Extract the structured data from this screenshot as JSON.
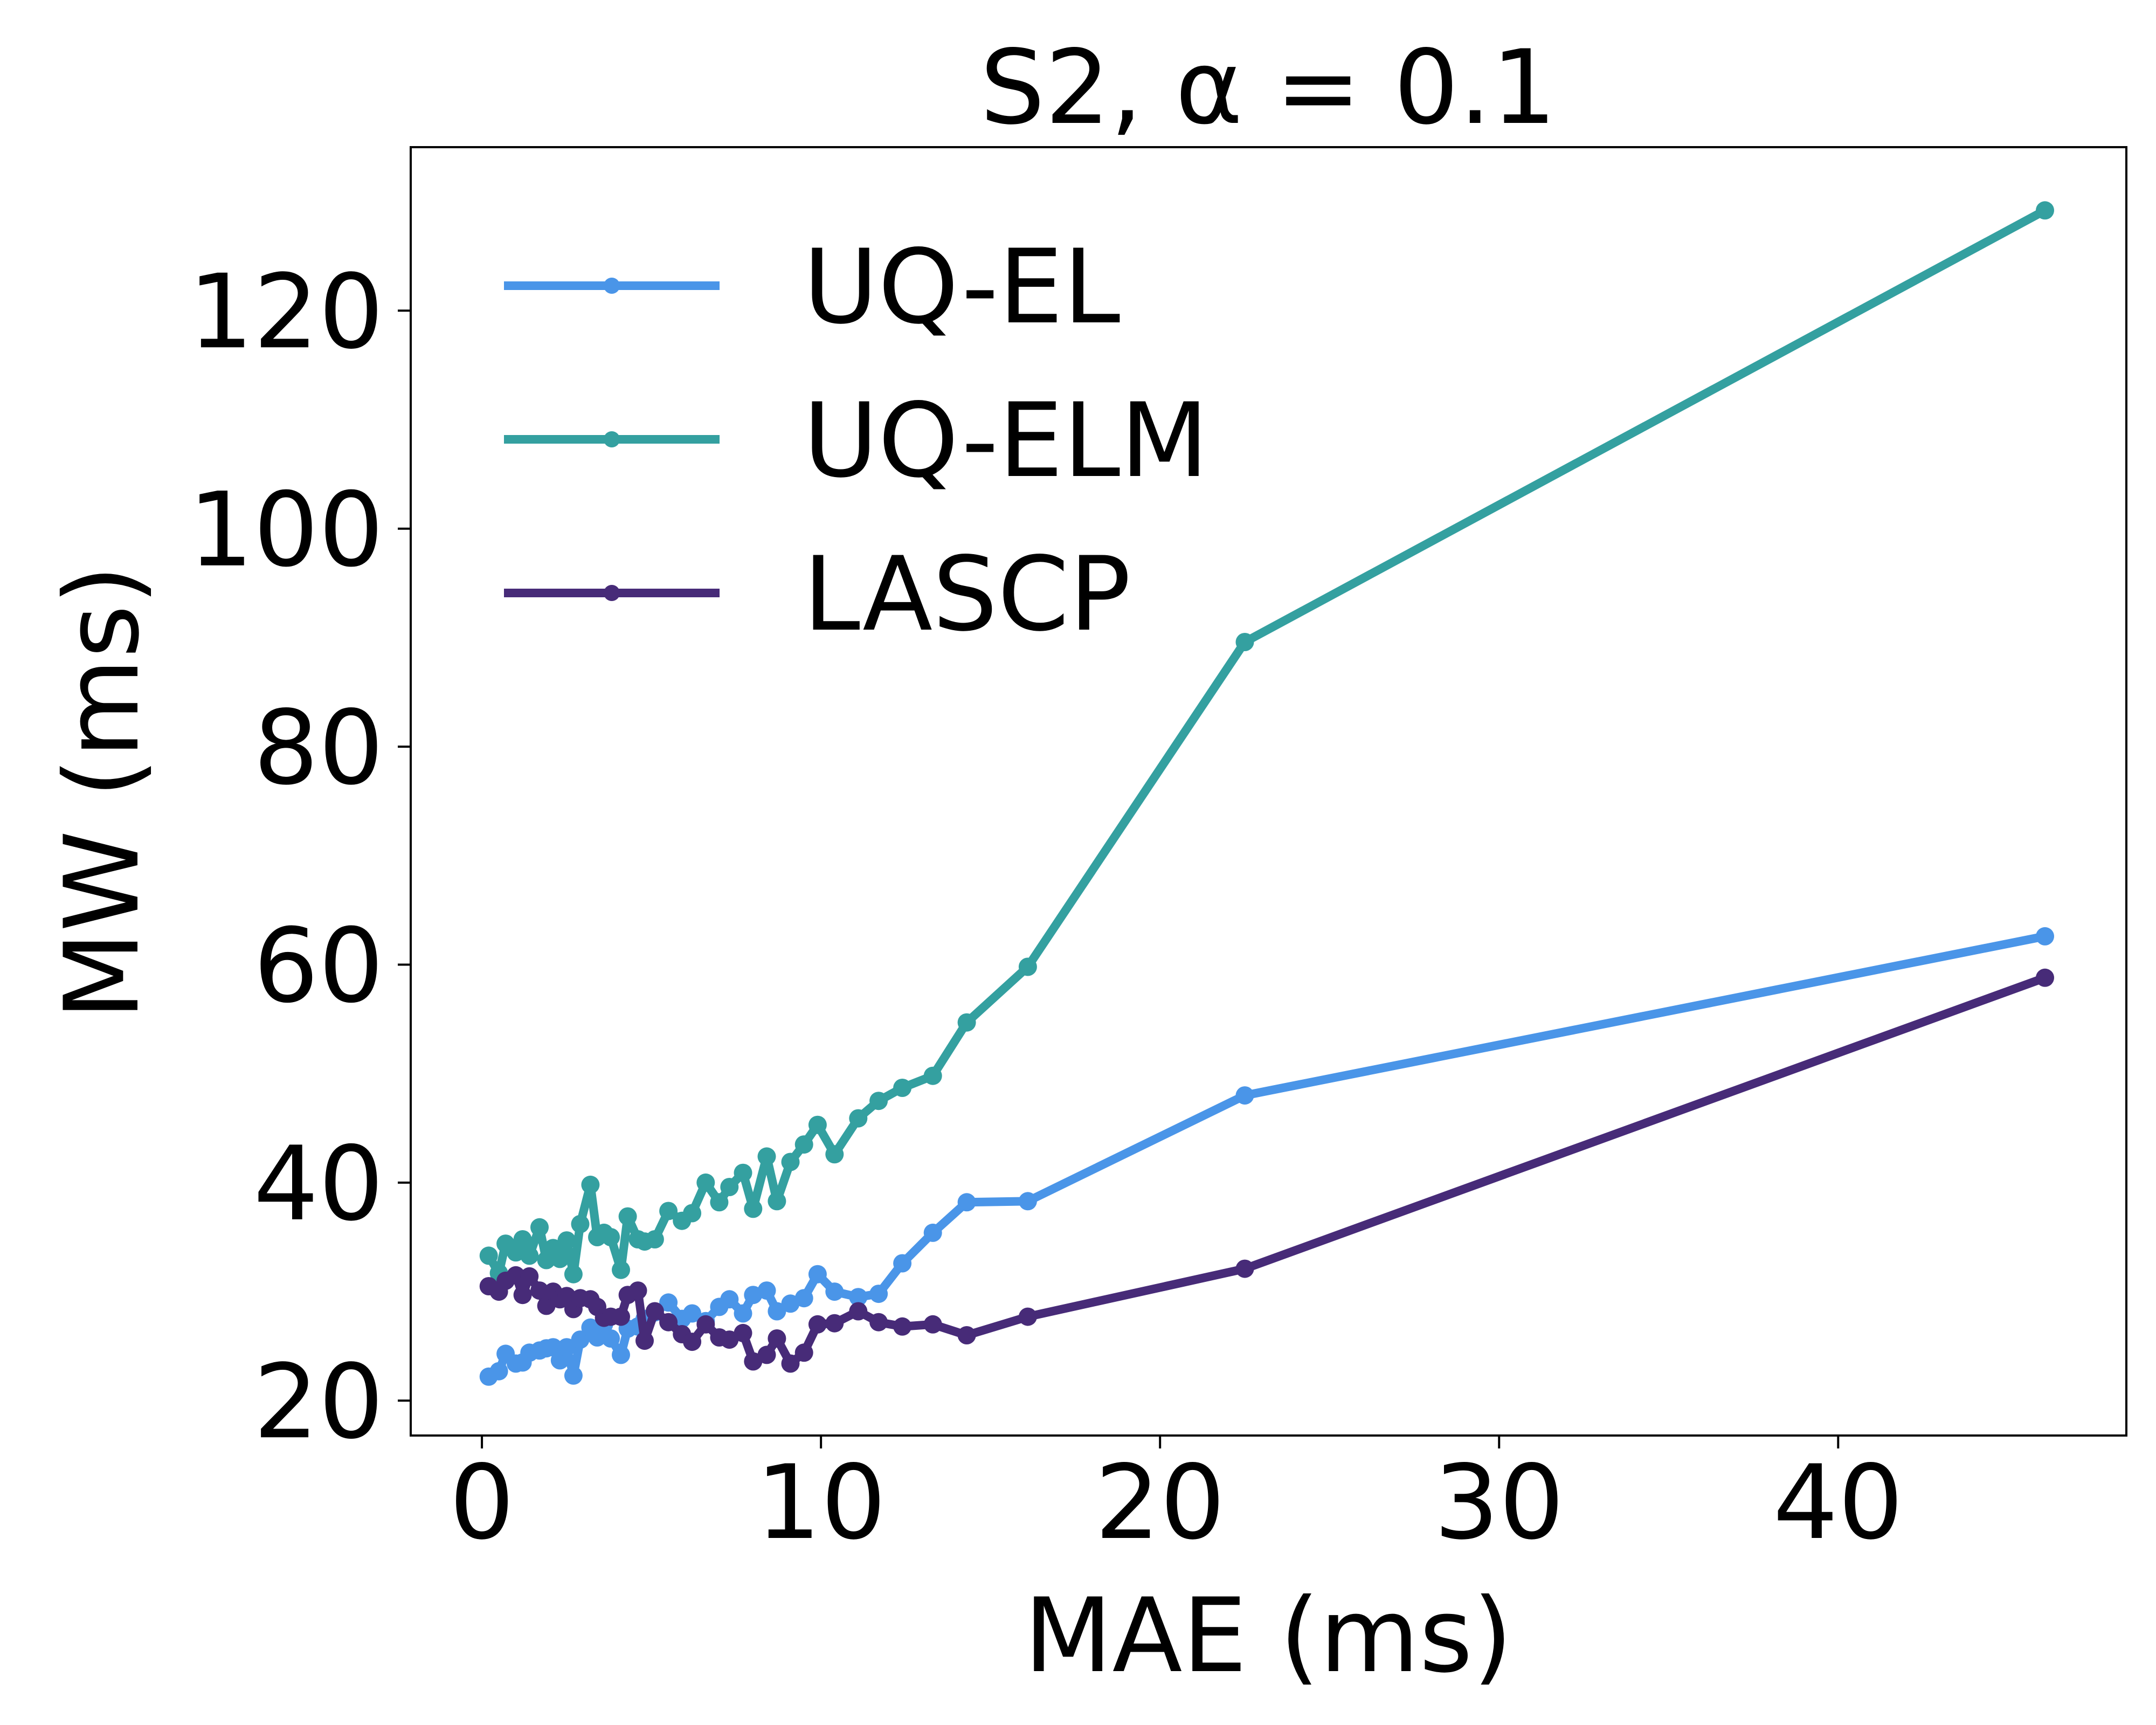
{
  "chart_data": {
    "type": "line",
    "title": "S2, α = 0.1",
    "xlabel": "MAE (ms)",
    "ylabel": "MW (ms)",
    "xlim": [
      -2.1,
      48.5
    ],
    "ylim": [
      16.8,
      135.0
    ],
    "xticks": [
      0,
      10,
      20,
      30,
      40
    ],
    "yticks": [
      20,
      40,
      60,
      80,
      100,
      120
    ],
    "grid": false,
    "legend_position": "top-left",
    "series": [
      {
        "name": "UQ-EL",
        "color": "#4a95e8",
        "points": [
          [
            0.2,
            22.2
          ],
          [
            0.5,
            22.7
          ],
          [
            0.7,
            24.3
          ],
          [
            1.0,
            23.4
          ],
          [
            1.2,
            23.5
          ],
          [
            1.4,
            24.4
          ],
          [
            1.7,
            24.6
          ],
          [
            1.9,
            24.8
          ],
          [
            2.1,
            24.9
          ],
          [
            2.3,
            23.7
          ],
          [
            2.5,
            24.9
          ],
          [
            2.7,
            22.3
          ],
          [
            2.9,
            25.6
          ],
          [
            3.2,
            26.7
          ],
          [
            3.4,
            25.8
          ],
          [
            3.6,
            27.0
          ],
          [
            3.8,
            25.7
          ],
          [
            4.1,
            24.2
          ],
          [
            4.3,
            26.6
          ],
          [
            4.6,
            26.8
          ],
          [
            4.8,
            27.5
          ],
          [
            5.1,
            28.1
          ],
          [
            5.5,
            29.0
          ],
          [
            5.9,
            27.5
          ],
          [
            6.2,
            28.0
          ],
          [
            6.6,
            27.3
          ],
          [
            7.0,
            28.6
          ],
          [
            7.3,
            29.3
          ],
          [
            7.7,
            28.0
          ],
          [
            8.0,
            29.7
          ],
          [
            8.4,
            30.1
          ],
          [
            8.7,
            28.2
          ],
          [
            9.1,
            28.9
          ],
          [
            9.5,
            29.4
          ],
          [
            9.9,
            31.6
          ],
          [
            10.4,
            30.0
          ],
          [
            11.1,
            29.5
          ],
          [
            11.7,
            29.8
          ],
          [
            12.4,
            32.6
          ],
          [
            13.3,
            35.4
          ],
          [
            14.3,
            38.2
          ],
          [
            16.1,
            38.3
          ],
          [
            22.5,
            48.0
          ],
          [
            46.1,
            62.6
          ]
        ]
      },
      {
        "name": "UQ-ELM",
        "color": "#34a0a0",
        "points": [
          [
            0.2,
            33.3
          ],
          [
            0.5,
            31.7
          ],
          [
            0.7,
            34.4
          ],
          [
            1.0,
            33.6
          ],
          [
            1.2,
            34.8
          ],
          [
            1.4,
            33.3
          ],
          [
            1.7,
            35.9
          ],
          [
            1.9,
            32.9
          ],
          [
            2.1,
            34.0
          ],
          [
            2.3,
            33.0
          ],
          [
            2.5,
            34.7
          ],
          [
            2.7,
            31.6
          ],
          [
            2.9,
            36.2
          ],
          [
            3.2,
            39.8
          ],
          [
            3.4,
            35.0
          ],
          [
            3.6,
            35.4
          ],
          [
            3.8,
            35.0
          ],
          [
            4.1,
            32.0
          ],
          [
            4.3,
            36.9
          ],
          [
            4.6,
            34.8
          ],
          [
            4.8,
            34.6
          ],
          [
            5.1,
            34.8
          ],
          [
            5.5,
            37.4
          ],
          [
            5.9,
            36.5
          ],
          [
            6.2,
            37.2
          ],
          [
            6.6,
            40.0
          ],
          [
            7.0,
            38.2
          ],
          [
            7.3,
            39.6
          ],
          [
            7.7,
            40.9
          ],
          [
            8.0,
            37.6
          ],
          [
            8.4,
            42.4
          ],
          [
            8.7,
            38.3
          ],
          [
            9.1,
            41.9
          ],
          [
            9.5,
            43.5
          ],
          [
            9.9,
            45.3
          ],
          [
            10.4,
            42.6
          ],
          [
            11.1,
            45.9
          ],
          [
            11.7,
            47.5
          ],
          [
            12.4,
            48.7
          ],
          [
            13.3,
            49.8
          ],
          [
            14.3,
            54.7
          ],
          [
            16.1,
            59.8
          ],
          [
            22.5,
            89.6
          ],
          [
            46.1,
            129.2
          ]
        ]
      },
      {
        "name": "LASCP",
        "color": "#472b78",
        "points": [
          [
            0.2,
            30.5
          ],
          [
            0.5,
            30.0
          ],
          [
            0.7,
            31.0
          ],
          [
            1.0,
            31.5
          ],
          [
            1.2,
            29.7
          ],
          [
            1.4,
            31.4
          ],
          [
            1.7,
            30.1
          ],
          [
            1.9,
            28.7
          ],
          [
            2.1,
            30.0
          ],
          [
            2.3,
            29.3
          ],
          [
            2.5,
            29.6
          ],
          [
            2.7,
            28.4
          ],
          [
            2.9,
            29.4
          ],
          [
            3.2,
            29.3
          ],
          [
            3.4,
            28.6
          ],
          [
            3.6,
            27.6
          ],
          [
            3.8,
            27.7
          ],
          [
            4.1,
            27.7
          ],
          [
            4.3,
            29.7
          ],
          [
            4.6,
            30.1
          ],
          [
            4.8,
            25.5
          ],
          [
            5.1,
            28.2
          ],
          [
            5.5,
            27.2
          ],
          [
            5.9,
            26.1
          ],
          [
            6.2,
            25.4
          ],
          [
            6.6,
            27.0
          ],
          [
            7.0,
            25.8
          ],
          [
            7.3,
            25.6
          ],
          [
            7.7,
            26.2
          ],
          [
            8.0,
            23.6
          ],
          [
            8.4,
            24.2
          ],
          [
            8.7,
            25.7
          ],
          [
            9.1,
            23.4
          ],
          [
            9.5,
            24.4
          ],
          [
            9.9,
            27.0
          ],
          [
            10.4,
            27.1
          ],
          [
            11.1,
            28.2
          ],
          [
            11.7,
            27.2
          ],
          [
            12.4,
            26.8
          ],
          [
            13.3,
            27.0
          ],
          [
            14.3,
            26.0
          ],
          [
            16.1,
            27.7
          ],
          [
            22.5,
            32.1
          ],
          [
            46.1,
            58.8
          ]
        ]
      }
    ]
  }
}
